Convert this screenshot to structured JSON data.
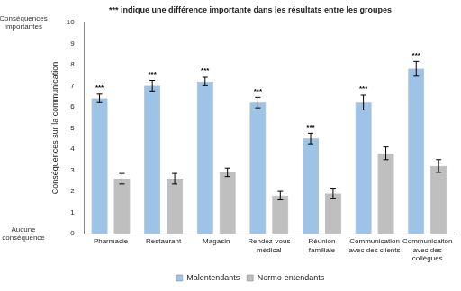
{
  "chart_data": {
    "type": "bar",
    "title": "*** indique une différence importante dans les résultats entre les groupes",
    "y_label": "Conséquences sur la communication",
    "categories": [
      "Pharmacie",
      "Restaurant",
      "Magasin",
      "Rendez-vous médical",
      "Réunion familiale",
      "Communication avec des clients",
      "Communicaiton avec des collègues"
    ],
    "series": [
      {
        "name": "Malentendants",
        "color": "#9dc3e6",
        "values": [
          6.4,
          7.0,
          7.2,
          6.2,
          4.5,
          6.2,
          7.8
        ],
        "errors": [
          0.2,
          0.25,
          0.2,
          0.25,
          0.25,
          0.35,
          0.35
        ]
      },
      {
        "name": "Normo-entendants",
        "color": "#bfbfbf",
        "values": [
          2.6,
          2.6,
          2.9,
          1.8,
          1.9,
          3.8,
          3.2
        ],
        "errors": [
          0.25,
          0.25,
          0.2,
          0.2,
          0.25,
          0.3,
          0.3
        ]
      }
    ],
    "annotations": [
      {
        "category": "Pharmacie",
        "text": "***"
      },
      {
        "category": "Restaurant",
        "text": "***"
      },
      {
        "category": "Magasin",
        "text": "***"
      },
      {
        "category": "Rendez-vous médical",
        "text": "***"
      },
      {
        "category": "Réunion familiale",
        "text": "***"
      },
      {
        "category": "Communication avec des clients",
        "text": "***"
      },
      {
        "category": "Communicaiton avec des collègues",
        "text": "***"
      },
      {
        "y": 10,
        "text": "Conséquences importantes"
      },
      {
        "y": 0,
        "text": "Aucune conséquence"
      }
    ],
    "ylim": [
      0,
      10
    ],
    "yticks": [
      0,
      1,
      2,
      3,
      4,
      5,
      6,
      7,
      8,
      9,
      10
    ],
    "grid": false,
    "legend": "bottom"
  }
}
